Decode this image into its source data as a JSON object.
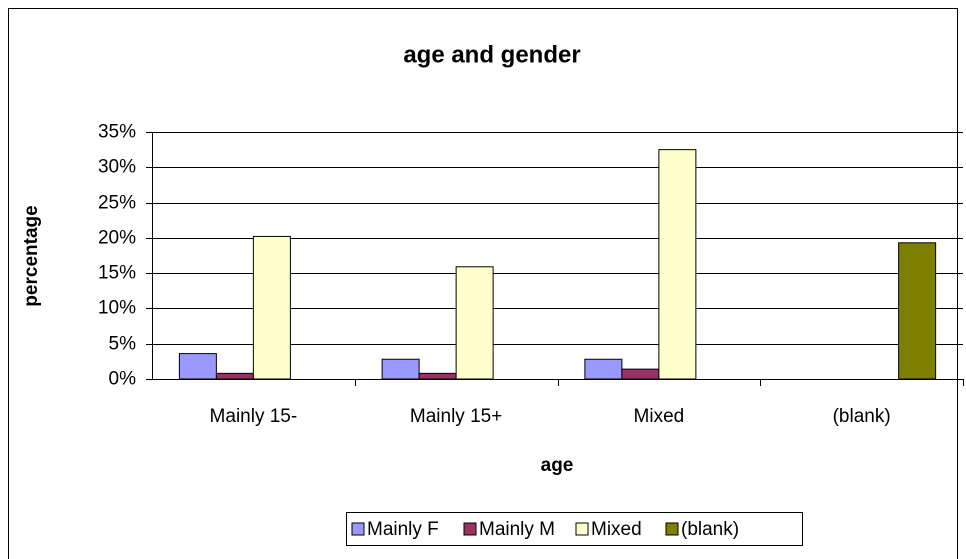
{
  "chart_data": {
    "type": "bar",
    "title": "age and gender",
    "x_label": "age",
    "y_label": "percentage",
    "categories": [
      "Mainly 15-",
      "Mainly 15+",
      "Mixed",
      "(blank)"
    ],
    "series": [
      {
        "name": "Mainly F",
        "color": "#9999ff",
        "values": [
          3.6,
          2.8,
          2.8,
          null
        ]
      },
      {
        "name": "Mainly M",
        "color": "#993366",
        "values": [
          0.8,
          0.8,
          1.4,
          null
        ]
      },
      {
        "name": "Mixed",
        "color": "#ffffcc",
        "values": [
          20.2,
          15.9,
          32.5,
          null
        ]
      },
      {
        "name": "(blank)",
        "color": "#808000",
        "values": [
          null,
          null,
          null,
          19.3
        ]
      }
    ],
    "ylim": [
      0,
      35
    ],
    "yticks": [
      {
        "value": 0,
        "label": "0%"
      },
      {
        "value": 5,
        "label": "5%"
      },
      {
        "value": 10,
        "label": "10%"
      },
      {
        "value": 15,
        "label": "15%"
      },
      {
        "value": 20,
        "label": "20%"
      },
      {
        "value": 25,
        "label": "25%"
      },
      {
        "value": 30,
        "label": "30%"
      },
      {
        "value": 35,
        "label": "35%"
      }
    ],
    "grid": true,
    "legend": "bottom"
  }
}
